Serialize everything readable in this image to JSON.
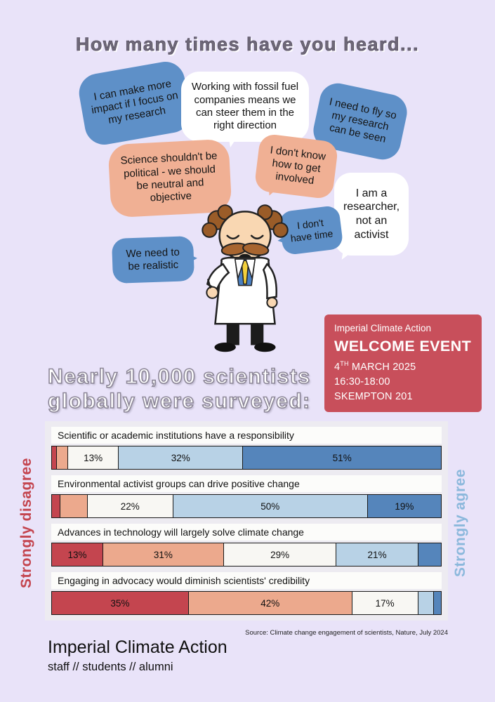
{
  "title": "How many times have you heard...",
  "bubbles": [
    {
      "text": "I can make more impact if I focus on my research",
      "color": "#5e90c8"
    },
    {
      "text": "Working with fossil fuel companies means we can steer them in the right direction",
      "color": "#ffffff"
    },
    {
      "text": "I need to fly so my research can be seen",
      "color": "#5e90c8"
    },
    {
      "text": "Science shouldn't be political - we should be neutral and objective",
      "color": "#f0b094"
    },
    {
      "text": "I don't know how to get involved",
      "color": "#f0b094"
    },
    {
      "text": "I am a researcher, not an activist",
      "color": "#ffffff"
    },
    {
      "text": "I don't have time",
      "color": "#5e90c8"
    },
    {
      "text": "We need to be realistic",
      "color": "#5e90c8"
    }
  ],
  "event_card": {
    "org": "Imperial Climate Action",
    "title": "WELCOME EVENT",
    "date_day": "4",
    "date_suffix": "TH",
    "date_rest": " MARCH 2025",
    "time": "16:30-18:00",
    "location": "SKEMPTON 201",
    "bg_color": "#c84f5b"
  },
  "survey_heading": {
    "line1": "Nearly 10,000 scientists",
    "line2": "globally were surveyed:"
  },
  "chart_data": {
    "type": "bar",
    "subtype": "stacked-horizontal-diverging-percent",
    "axis_left_label": "Strongly disagree",
    "axis_right_label": "Strongly agree",
    "levels": [
      "strongly-disagree",
      "disagree",
      "neutral",
      "agree",
      "strongly-agree"
    ],
    "colors": [
      "#c4454f",
      "#eca98d",
      "#f8f7f3",
      "#b8d2e6",
      "#5585bb"
    ],
    "axis_left_color": "#c4454f",
    "axis_right_color": "#8bb8dc",
    "rows": [
      {
        "label": "Scientific or academic institutions have a responsibility",
        "segments": [
          {
            "value": 1,
            "label": ""
          },
          {
            "value": 3,
            "label": ""
          },
          {
            "value": 13,
            "label": "13%"
          },
          {
            "value": 32,
            "label": "32%"
          },
          {
            "value": 51,
            "label": "51%"
          }
        ]
      },
      {
        "label": "Environmental activist groups can drive positive change",
        "segments": [
          {
            "value": 2,
            "label": ""
          },
          {
            "value": 7,
            "label": ""
          },
          {
            "value": 22,
            "label": "22%"
          },
          {
            "value": 50,
            "label": "50%"
          },
          {
            "value": 19,
            "label": "19%"
          }
        ]
      },
      {
        "label": "Advances in technology will largely solve climate change",
        "segments": [
          {
            "value": 13,
            "label": "13%"
          },
          {
            "value": 31,
            "label": "31%"
          },
          {
            "value": 29,
            "label": "29%"
          },
          {
            "value": 21,
            "label": "21%"
          },
          {
            "value": 6,
            "label": ""
          }
        ]
      },
      {
        "label": "Engaging in advocacy would diminish scientists' credibility",
        "segments": [
          {
            "value": 35,
            "label": "35%"
          },
          {
            "value": 42,
            "label": "42%"
          },
          {
            "value": 17,
            "label": "17%"
          },
          {
            "value": 4,
            "label": ""
          },
          {
            "value": 2,
            "label": ""
          }
        ]
      }
    ],
    "source": "Source: Climate change engagement of scientists, Nature, July 2024"
  },
  "footer": {
    "title": "Imperial Climate Action",
    "subtitle": "staff // students // alumni"
  }
}
